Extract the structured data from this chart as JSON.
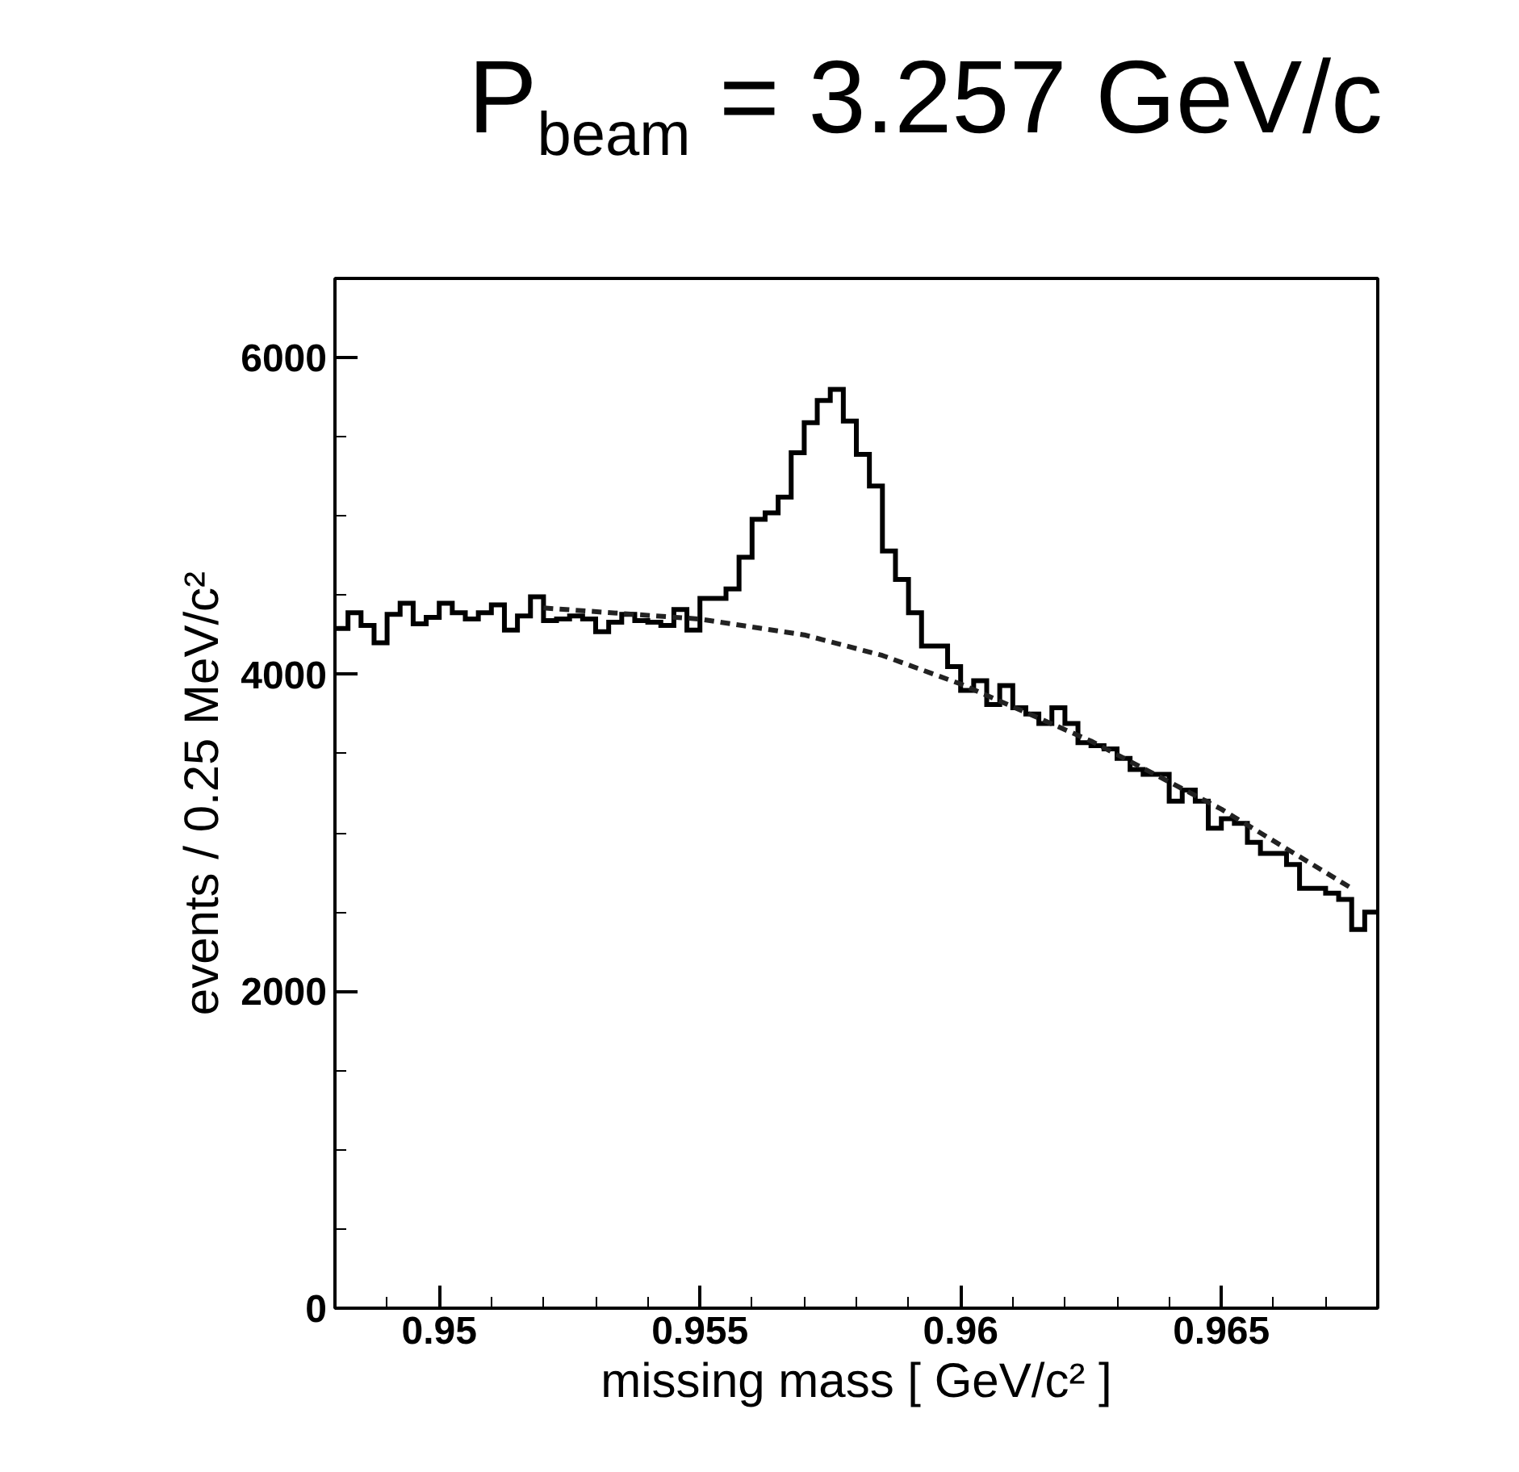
{
  "chart_data": {
    "type": "histogram",
    "title": "P$_{beam}$ = 3.257 GeV/c",
    "xlabel": "missing mass [ GeV/c² ]",
    "ylabel": "events / 0.25 MeV/c²",
    "xlim": [
      0.948,
      0.968
    ],
    "xticks": [
      0.95,
      0.955,
      0.96,
      0.965
    ],
    "ylim": [
      0,
      6500
    ],
    "yticks": [
      0,
      2000,
      4000,
      6000
    ],
    "grid": false,
    "color": "#000000",
    "bins": [
      0.948,
      0.94825,
      0.9485,
      0.94875,
      0.949,
      0.94925,
      0.9495,
      0.94975,
      0.95,
      0.95025,
      0.9505,
      0.95075,
      0.951,
      0.95125,
      0.9515,
      0.95175,
      0.952,
      0.95225,
      0.9525,
      0.95275,
      0.953,
      0.95325,
      0.9535,
      0.95375,
      0.954,
      0.95425,
      0.9545,
      0.95475,
      0.955,
      0.95525,
      0.9555,
      0.95575,
      0.956,
      0.95625,
      0.9565,
      0.95675,
      0.957,
      0.95725,
      0.9575,
      0.95775,
      0.958,
      0.95825,
      0.9585,
      0.95875,
      0.959,
      0.95925,
      0.9595,
      0.95975,
      0.96,
      0.96025,
      0.9605,
      0.96075,
      0.961,
      0.96125,
      0.9615,
      0.96175,
      0.962,
      0.96225,
      0.9625,
      0.96275,
      0.963,
      0.96325,
      0.9635,
      0.96375,
      0.964,
      0.96425,
      0.9645,
      0.96475,
      0.965,
      0.96525,
      0.9655,
      0.96575,
      0.966,
      0.96625,
      0.9665,
      0.96675,
      0.967,
      0.96725,
      0.9675,
      0.96775,
      0.968
    ],
    "values": [
      4290,
      4390,
      4310,
      4200,
      4380,
      4450,
      4320,
      4360,
      4450,
      4390,
      4350,
      4390,
      4440,
      4280,
      4370,
      4490,
      4340,
      4350,
      4370,
      4350,
      4270,
      4330,
      4380,
      4340,
      4330,
      4310,
      4410,
      4280,
      4480,
      4480,
      4540,
      4740,
      4980,
      5020,
      5120,
      5400,
      5590,
      5730,
      5800,
      5600,
      5390,
      5190,
      4780,
      4600,
      4390,
      4180,
      4180,
      4050,
      3900,
      3960,
      3810,
      3930,
      3790,
      3750,
      3690,
      3790,
      3690,
      3570,
      3550,
      3530,
      3470,
      3400,
      3370,
      3370,
      3200,
      3270,
      3200,
      3030,
      3090,
      3060,
      2940,
      2870,
      2870,
      2800,
      2650,
      2650,
      2620,
      2580,
      2390,
      2500
    ],
    "series": [
      {
        "type": "line",
        "color": "#222222",
        "line_style": "dashed",
        "x": [
          0.952,
          0.955,
          0.957,
          0.9585,
          0.96,
          0.9625,
          0.965,
          0.9675
        ],
        "values": [
          4420,
          4350,
          4250,
          4120,
          3940,
          3580,
          3150,
          2650
        ]
      }
    ]
  }
}
